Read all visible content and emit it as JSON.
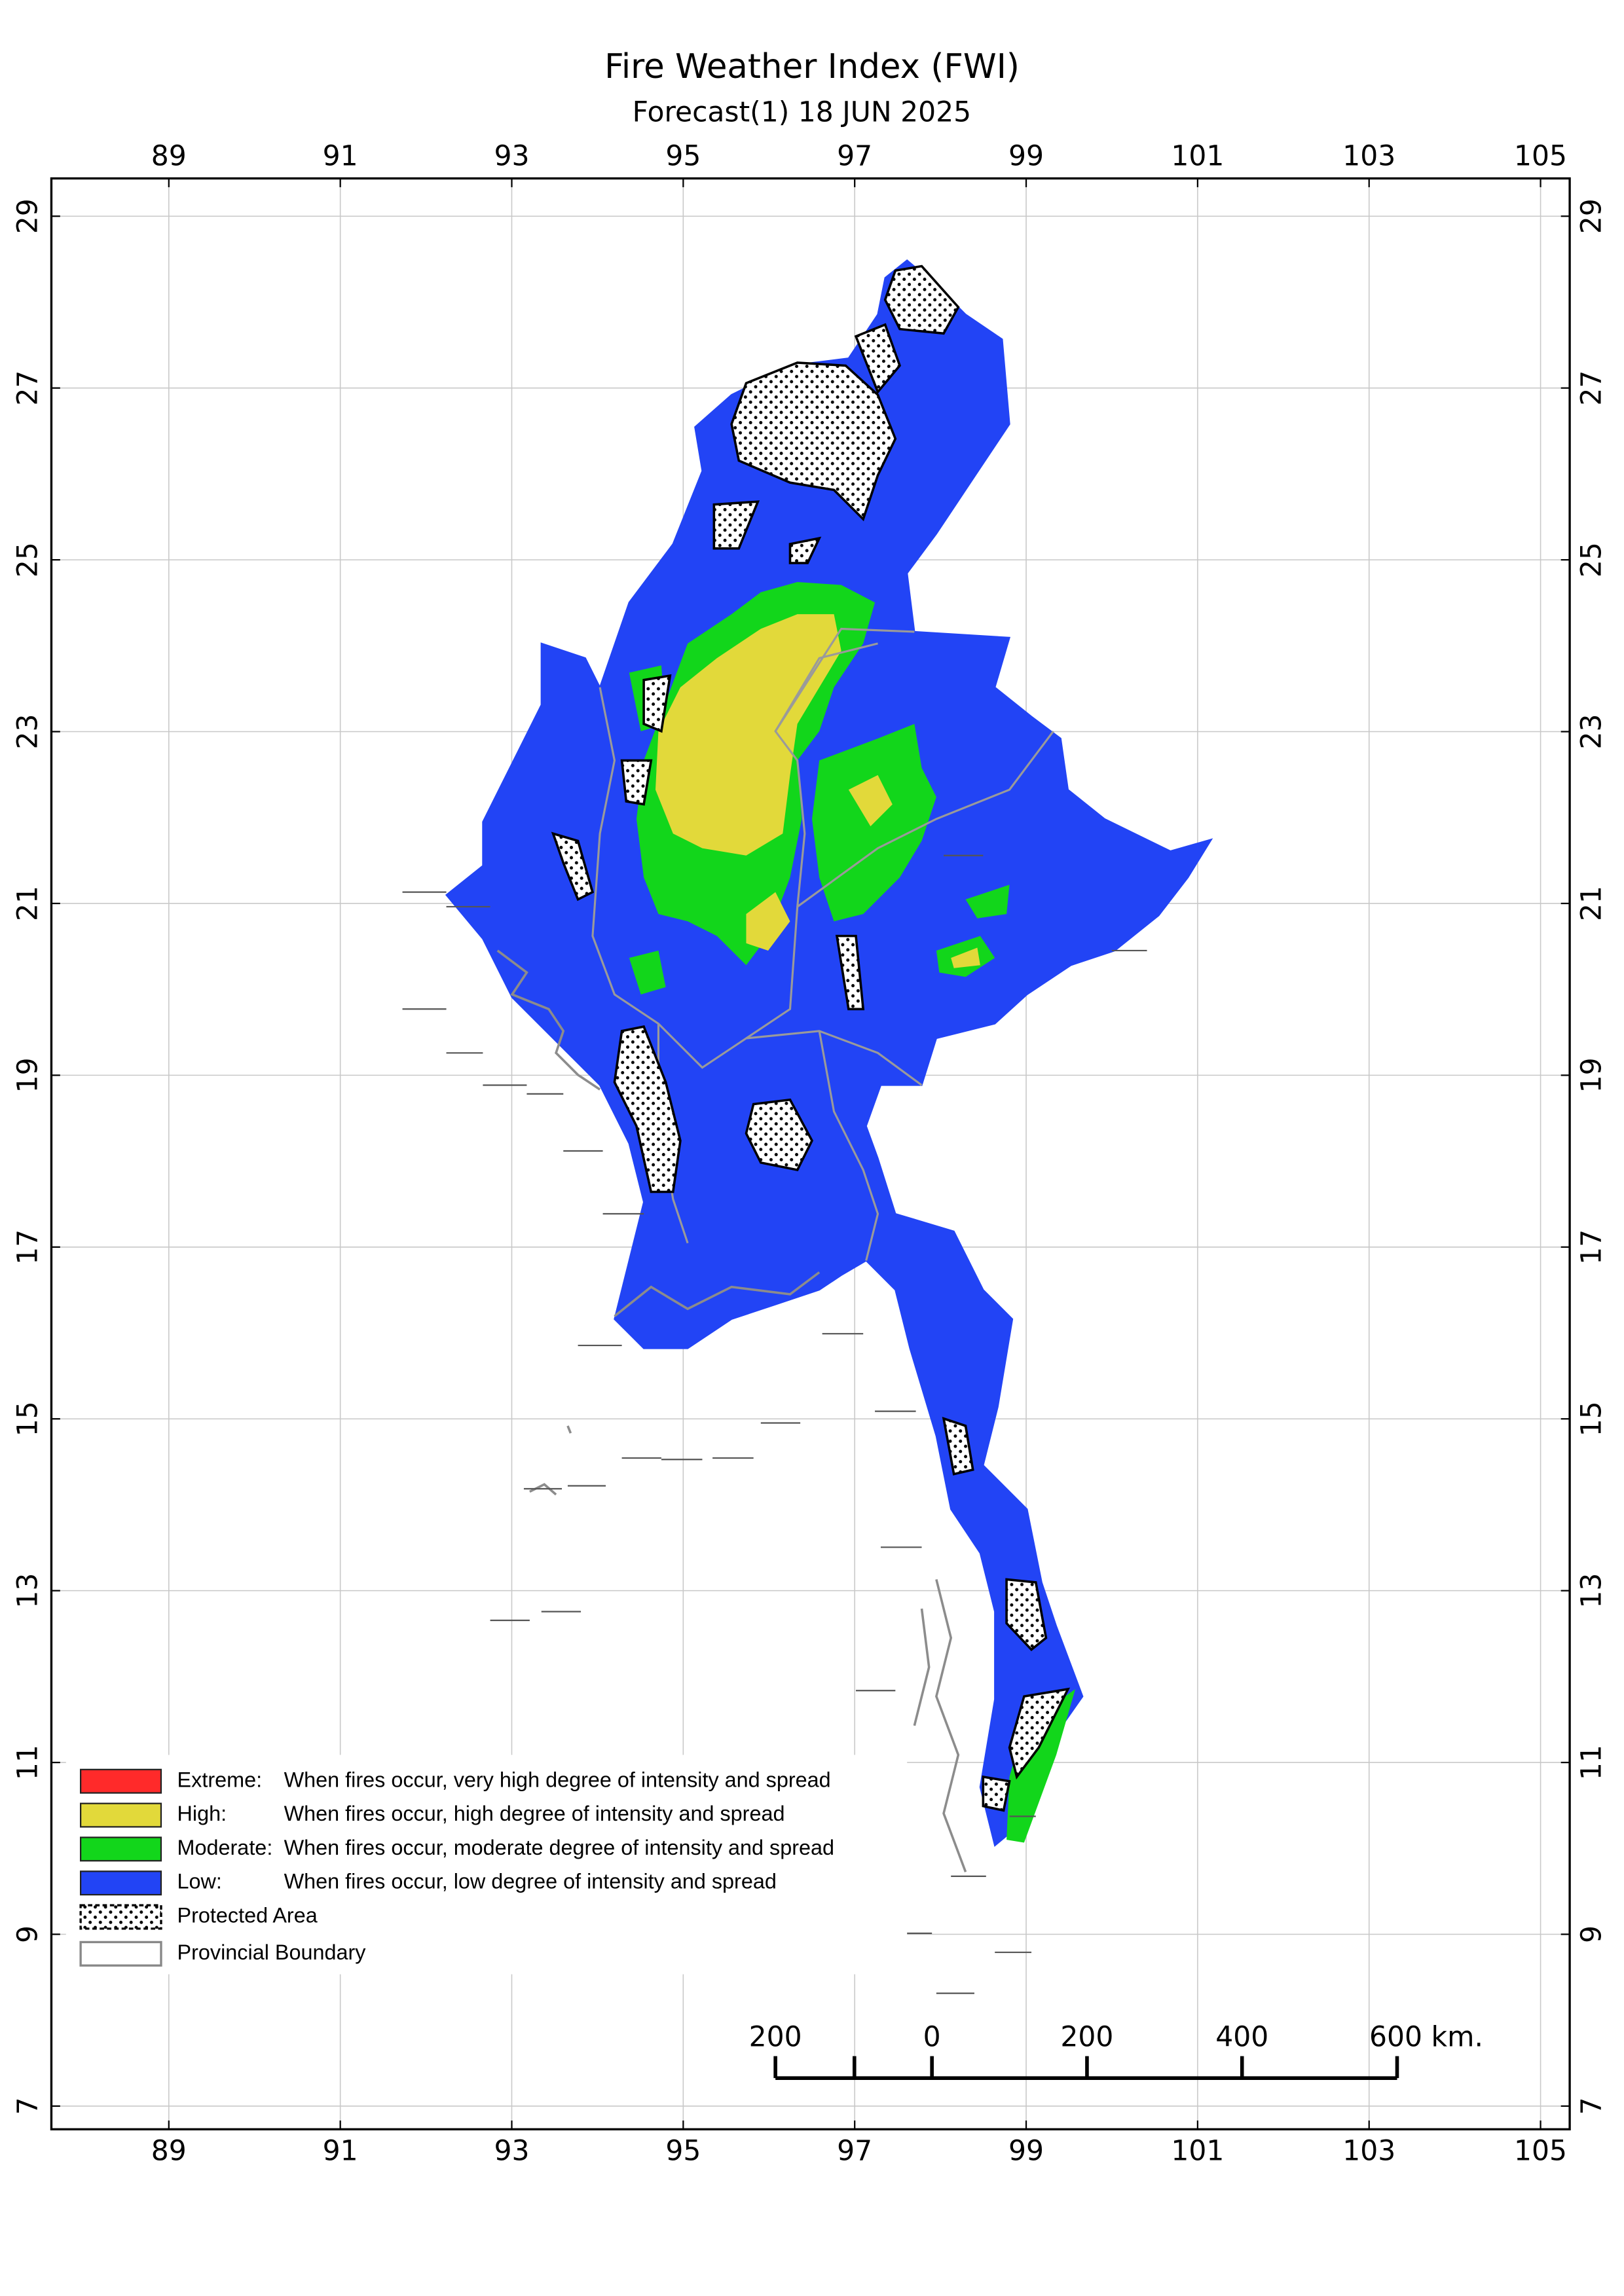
{
  "map": {
    "title": "Fire Weather Index (FWI)",
    "subtitle": "Forecast(1) 18 JUN 2025",
    "xlim": [
      87.63,
      105.34
    ],
    "ylim": [
      6.73,
      29.44
    ],
    "xticks": [
      89,
      91,
      93,
      95,
      97,
      99,
      101,
      103,
      105
    ],
    "yticks": [
      7,
      9,
      11,
      13,
      15,
      17,
      19,
      21,
      23,
      25,
      27,
      29
    ],
    "grid": true,
    "legend": [
      {
        "label": "Extreme:",
        "description": "When fires occur, very high degree of intensity and spread",
        "color": "#ff2a2a"
      },
      {
        "label": "High:",
        "description": "When fires occur, high degree of intensity and spread",
        "color": "#e2d93a"
      },
      {
        "label": "Moderate:",
        "description": "When fires occur, moderate degree of intensity and spread",
        "color": "#12d61b"
      },
      {
        "label": "Low:",
        "description": "When fires occur, low degree of intensity and spread",
        "color": "#2244f5"
      }
    ],
    "legend_extra": [
      "Protected Area",
      "Provincial Boundary"
    ],
    "scale_bar": [
      "200",
      "0",
      "200",
      "400",
      "600 km."
    ]
  }
}
